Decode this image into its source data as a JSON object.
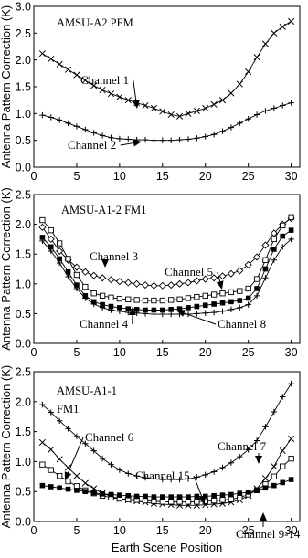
{
  "chart_data": [
    {
      "type": "line",
      "title": "AMSU-A2 PFM",
      "subtitle": "",
      "ylabel": "Antenna Pattern Correction (K)",
      "xlabel": "",
      "xlim": [
        0,
        31
      ],
      "ylim": [
        0,
        3.0
      ],
      "xticks": [
        "0",
        "5",
        "10",
        "15",
        "20",
        "25",
        "30"
      ],
      "yticks": [
        "0.0",
        "0.5",
        "1.0",
        "1.5",
        "2.0",
        "2.5",
        "3.0"
      ],
      "grid": false,
      "x": [
        1,
        2,
        3,
        4,
        5,
        6,
        7,
        8,
        9,
        10,
        11,
        12,
        13,
        14,
        15,
        16,
        17,
        18,
        19,
        20,
        21,
        22,
        23,
        24,
        25,
        26,
        27,
        28,
        29,
        30
      ],
      "series": [
        {
          "name": "Channel 1",
          "marker": "x",
          "values": [
            2.12,
            2.02,
            1.92,
            1.82,
            1.72,
            1.62,
            1.52,
            1.44,
            1.37,
            1.31,
            1.25,
            1.2,
            1.15,
            1.1,
            1.04,
            0.98,
            0.95,
            1.0,
            1.05,
            1.1,
            1.17,
            1.25,
            1.38,
            1.55,
            1.78,
            2.05,
            2.3,
            2.5,
            2.62,
            2.72
          ]
        },
        {
          "name": "Channel 2",
          "marker": "+",
          "values": [
            0.97,
            0.93,
            0.88,
            0.82,
            0.76,
            0.7,
            0.64,
            0.59,
            0.55,
            0.53,
            0.52,
            0.51,
            0.51,
            0.5,
            0.5,
            0.5,
            0.51,
            0.52,
            0.54,
            0.57,
            0.61,
            0.67,
            0.74,
            0.82,
            0.9,
            0.98,
            1.05,
            1.1,
            1.15,
            1.2
          ]
        }
      ],
      "annotations": [
        {
          "text": "Channel 1",
          "target_series": 0,
          "target_x": 16
        },
        {
          "text": "Channel 2",
          "target_series": 1,
          "target_x": 10
        }
      ]
    },
    {
      "type": "line",
      "title": "AMSU-A1-2 FM1",
      "subtitle": "",
      "ylabel": "Antenna Pattern Correction (K)",
      "xlabel": "",
      "xlim": [
        0,
        31
      ],
      "ylim": [
        0,
        2.5
      ],
      "xticks": [
        "0",
        "5",
        "10",
        "15",
        "20",
        "25",
        "30"
      ],
      "yticks": [
        "0.0",
        "0.5",
        "1.0",
        "1.5",
        "2.0",
        "2.5"
      ],
      "grid": false,
      "x": [
        1,
        2,
        3,
        4,
        5,
        6,
        7,
        8,
        9,
        10,
        11,
        12,
        13,
        14,
        15,
        16,
        17,
        18,
        19,
        20,
        21,
        22,
        23,
        24,
        25,
        26,
        27,
        28,
        29,
        30
      ],
      "series": [
        {
          "name": "Channel 3",
          "marker": "diamond",
          "values": [
            1.95,
            1.75,
            1.55,
            1.4,
            1.28,
            1.2,
            1.14,
            1.1,
            1.07,
            1.04,
            1.02,
            1.0,
            0.98,
            0.97,
            0.97,
            0.98,
            1.0,
            1.02,
            1.05,
            1.08,
            1.1,
            1.13,
            1.17,
            1.22,
            1.32,
            1.45,
            1.65,
            1.85,
            2.0,
            2.1
          ]
        },
        {
          "name": "Channel 5",
          "marker": "square-open",
          "values": [
            2.07,
            1.9,
            1.68,
            1.42,
            1.15,
            0.95,
            0.84,
            0.8,
            0.77,
            0.75,
            0.74,
            0.73,
            0.72,
            0.72,
            0.72,
            0.73,
            0.74,
            0.76,
            0.78,
            0.8,
            0.82,
            0.84,
            0.86,
            0.88,
            0.92,
            1.08,
            1.4,
            1.75,
            1.98,
            2.12
          ]
        },
        {
          "name": "Channel 4",
          "marker": "square-filled",
          "values": [
            1.78,
            1.62,
            1.42,
            1.2,
            0.98,
            0.8,
            0.7,
            0.65,
            0.62,
            0.6,
            0.58,
            0.57,
            0.56,
            0.56,
            0.56,
            0.57,
            0.58,
            0.6,
            0.62,
            0.64,
            0.66,
            0.68,
            0.7,
            0.72,
            0.76,
            0.92,
            1.25,
            1.58,
            1.8,
            1.9
          ]
        },
        {
          "name": "Channel 8",
          "marker": "plus",
          "values": [
            1.72,
            1.55,
            1.35,
            1.12,
            0.92,
            0.76,
            0.66,
            0.6,
            0.56,
            0.54,
            0.52,
            0.51,
            0.5,
            0.49,
            0.49,
            0.49,
            0.49,
            0.49,
            0.5,
            0.51,
            0.52,
            0.54,
            0.57,
            0.6,
            0.65,
            0.8,
            1.1,
            1.4,
            1.62,
            1.75
          ]
        }
      ],
      "annotations": [
        {
          "text": "Channel 3",
          "target_series": 0,
          "target_x": 11
        },
        {
          "text": "Channel 5",
          "target_series": 1,
          "target_x": 24
        },
        {
          "text": "Channel 4",
          "target_series": 2,
          "target_x": 13
        },
        {
          "text": "Channel 8",
          "target_series": 3,
          "target_x": 17
        }
      ]
    },
    {
      "type": "line",
      "title": "AMSU-A1-1",
      "subtitle": "FM1",
      "ylabel": "Antenna Pattern Correction (K)",
      "xlabel": "Earth Scene Position",
      "xlim": [
        0,
        31
      ],
      "ylim": [
        0,
        2.5
      ],
      "xticks": [
        "0",
        "5",
        "10",
        "15",
        "20",
        "25",
        "30"
      ],
      "yticks": [
        "0.0",
        "0.5",
        "1.0",
        "1.5",
        "2.0",
        "2.5"
      ],
      "grid": false,
      "x": [
        1,
        2,
        3,
        4,
        5,
        6,
        7,
        8,
        9,
        10,
        11,
        12,
        13,
        14,
        15,
        16,
        17,
        18,
        19,
        20,
        21,
        22,
        23,
        24,
        25,
        26,
        27,
        28,
        29,
        30
      ],
      "series": [
        {
          "name": "Channel 7",
          "marker": "plus",
          "values": [
            1.95,
            1.82,
            1.68,
            1.55,
            1.42,
            1.3,
            1.18,
            1.05,
            0.95,
            0.86,
            0.8,
            0.76,
            0.73,
            0.71,
            0.7,
            0.7,
            0.7,
            0.71,
            0.74,
            0.78,
            0.83,
            0.9,
            0.98,
            1.08,
            1.2,
            1.35,
            1.58,
            1.83,
            2.08,
            2.3
          ]
        },
        {
          "name": "Channel 6",
          "marker": "x",
          "values": [
            1.32,
            1.2,
            1.04,
            0.9,
            0.76,
            0.64,
            0.55,
            0.47,
            0.42,
            0.38,
            0.36,
            0.34,
            0.32,
            0.3,
            0.29,
            0.28,
            0.27,
            0.27,
            0.27,
            0.28,
            0.29,
            0.3,
            0.32,
            0.36,
            0.43,
            0.55,
            0.72,
            0.92,
            1.18,
            1.38
          ]
        },
        {
          "name": "Channel 15",
          "marker": "square-open",
          "values": [
            0.95,
            0.86,
            0.76,
            0.67,
            0.59,
            0.52,
            0.47,
            0.43,
            0.4,
            0.38,
            0.37,
            0.36,
            0.35,
            0.34,
            0.33,
            0.33,
            0.33,
            0.33,
            0.33,
            0.34,
            0.35,
            0.36,
            0.37,
            0.4,
            0.45,
            0.52,
            0.62,
            0.75,
            0.92,
            1.05
          ]
        },
        {
          "name": "Channel 9-14",
          "marker": "square-filled",
          "values": [
            0.6,
            0.58,
            0.56,
            0.54,
            0.52,
            0.5,
            0.48,
            0.46,
            0.45,
            0.44,
            0.43,
            0.42,
            0.42,
            0.41,
            0.41,
            0.41,
            0.41,
            0.41,
            0.42,
            0.42,
            0.43,
            0.44,
            0.45,
            0.47,
            0.49,
            0.52,
            0.56,
            0.6,
            0.65,
            0.7
          ]
        }
      ],
      "annotations": [
        {
          "text": "Channel 7",
          "target_series": 0,
          "target_x": 24
        },
        {
          "text": "Channel 6",
          "target_series": 1,
          "target_x": 4
        },
        {
          "text": "Channel 15",
          "target_series": 2,
          "target_x": 18
        },
        {
          "text": "Channel 9-14",
          "target_series": 3,
          "target_x": 29
        }
      ]
    }
  ]
}
